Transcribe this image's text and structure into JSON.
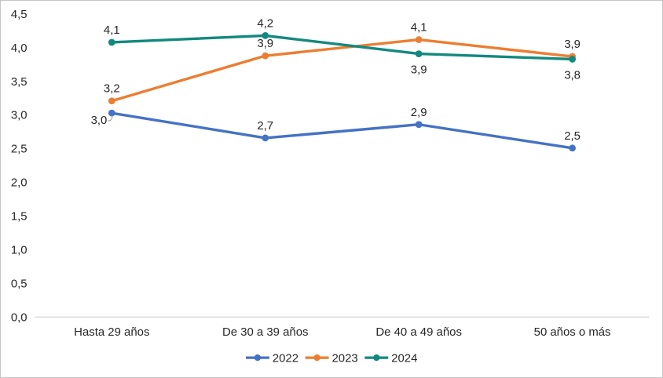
{
  "chart_data": {
    "type": "line",
    "title": "",
    "xlabel": "",
    "ylabel": "",
    "categories": [
      "Hasta 29 años",
      "De 30 a 39 años",
      "De 40 a 49 años",
      "50 años o más"
    ],
    "y_axis": {
      "min": 0,
      "max": 4.5,
      "step": 0.5,
      "tick_labels": [
        "0,0",
        "0,5",
        "1,0",
        "1,5",
        "2,0",
        "2,5",
        "3,0",
        "3,5",
        "4,0",
        "4,5"
      ]
    },
    "grid": false,
    "legend": {
      "position": "bottom-center",
      "items": [
        "2022",
        "2023",
        "2024"
      ]
    },
    "series": [
      {
        "name": "2022",
        "color": "#4472C4",
        "values": [
          3.0,
          2.7,
          2.9,
          2.5
        ],
        "point_labels": [
          "3,0",
          "2,7",
          "2,9",
          "2,5"
        ],
        "render_values": [
          3.03,
          2.66,
          2.86,
          2.51
        ],
        "label_placement": [
          "leader-left",
          "above",
          "above",
          "above"
        ]
      },
      {
        "name": "2023",
        "color": "#ED7D31",
        "values": [
          3.2,
          3.9,
          4.1,
          3.9
        ],
        "point_labels": [
          "3,2",
          "3,9",
          "4,1",
          "3,9"
        ],
        "render_values": [
          3.21,
          3.88,
          4.12,
          3.87
        ],
        "label_placement": [
          "above",
          "above",
          "above",
          "above"
        ]
      },
      {
        "name": "2024",
        "color": "#12897E",
        "values": [
          4.1,
          4.2,
          3.9,
          3.8
        ],
        "point_labels": [
          "4,1",
          "4,2",
          "3,9",
          "3,8"
        ],
        "render_values": [
          4.08,
          4.18,
          3.91,
          3.83
        ],
        "label_placement": [
          "above",
          "above",
          "below",
          "below"
        ]
      }
    ],
    "style": {
      "axis_line_color": "#D9D9D9",
      "leader_line_color": "#A6A6A6",
      "text_color": "#262626",
      "background_color": "#FFFFFF",
      "border_color": "#C6C6C6"
    }
  }
}
